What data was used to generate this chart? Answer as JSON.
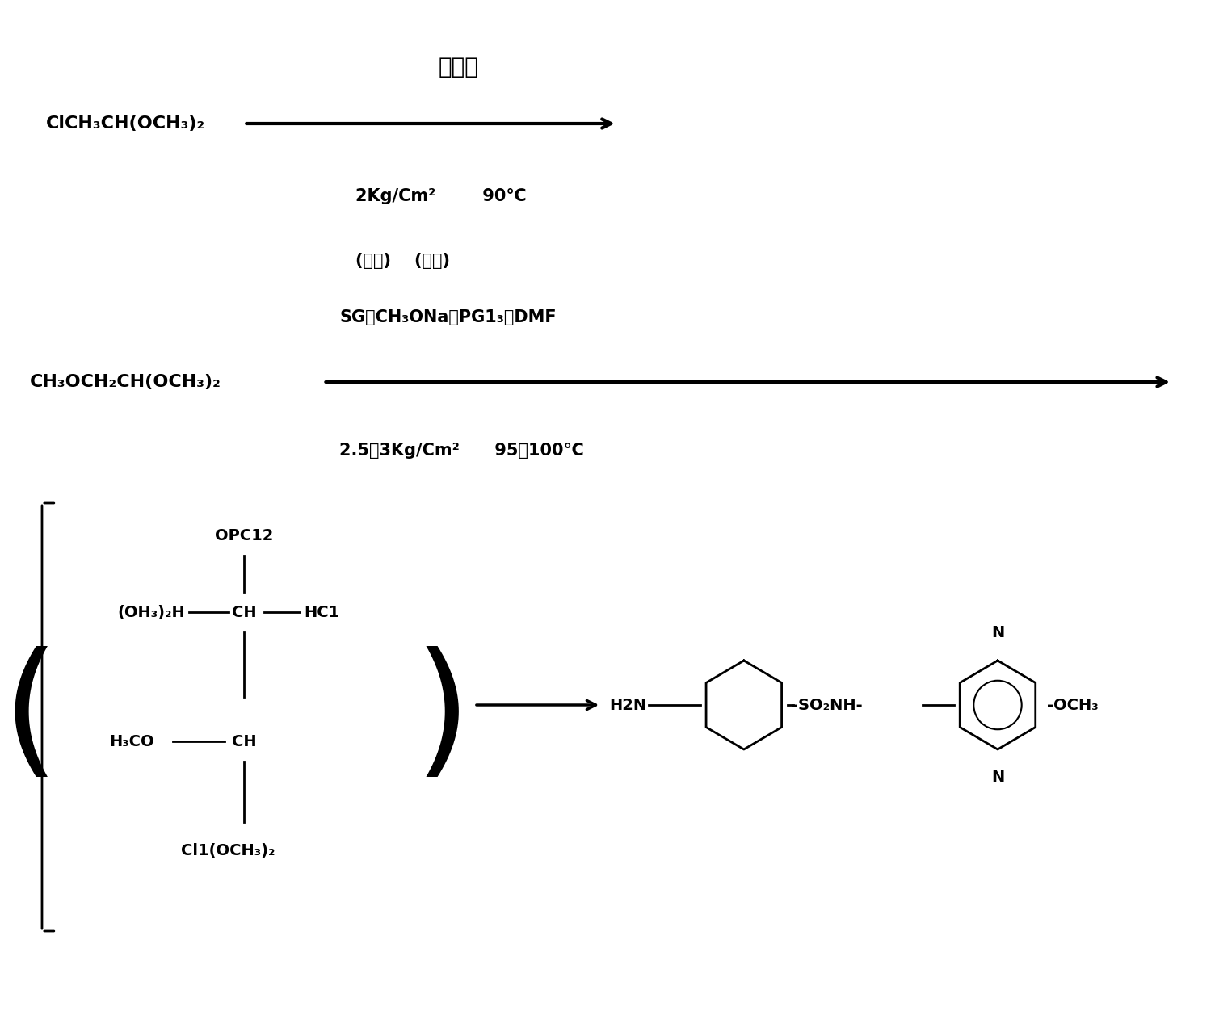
{
  "bg_color": "#ffffff",
  "figsize": [
    15.04,
    12.73
  ],
  "dpi": 100,
  "top_label": "甲醇钓",
  "reactant1": "ClCH₃CH(OCH₃)₂",
  "reactant2": "CH₃OCH₂CH(OCH₃)₂",
  "condition1_line1": "2Kg/Cm²        90℃",
  "condition1_line2": "(加碱)    (环合)",
  "condition1_line3": "SG、CH₃ONa、PG1₃、DMF",
  "condition2": "2.5～3Kg/Cm²      95～100℃",
  "bracket_content": {
    "opc12": "OPC12",
    "oh3_2h": "(OH₃)₂H",
    "ch_top": "CH",
    "hc1": "HC1",
    "h3co": "H₃CO",
    "ch_bottom": "CH",
    "cl_och3_2": "Cl1(OCH₃)₂"
  },
  "product": {
    "h2n": "H2N",
    "so2nh": "-SO₂NH-",
    "och3": "-OCH₃",
    "n_top": "N",
    "n_bottom": "N"
  }
}
